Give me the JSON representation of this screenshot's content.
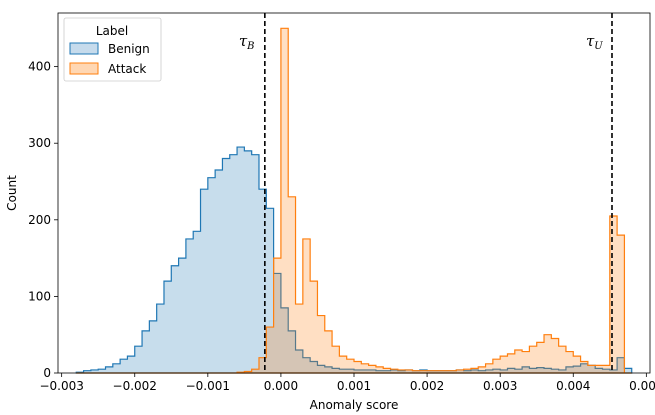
{
  "chart_data": {
    "type": "histogram",
    "xlabel": "Anomaly score",
    "ylabel": "Count",
    "xlim": [
      -0.00305,
      0.00505
    ],
    "ylim": [
      0,
      470
    ],
    "x_ticks": [
      -0.003,
      -0.002,
      -0.001,
      0.0,
      0.001,
      0.002,
      0.003,
      0.004,
      0.005
    ],
    "x_tick_labels": [
      "−0.003",
      "−0.002",
      "−0.001",
      "0.000",
      "0.001",
      "0.002",
      "0.003",
      "0.004",
      "0.005"
    ],
    "y_ticks": [
      0,
      100,
      200,
      300,
      400
    ],
    "y_tick_labels": [
      "0",
      "100",
      "200",
      "300",
      "400"
    ],
    "grid": false,
    "legend": {
      "title": "Label",
      "position": "top-left"
    },
    "bin_start": -0.0028,
    "bin_width": 0.0001,
    "series": [
      {
        "name": "Benign",
        "color": "#1f77b4",
        "fill": "#c6dbec",
        "counts": [
          1,
          3,
          4,
          5,
          8,
          12,
          18,
          22,
          35,
          55,
          68,
          90,
          120,
          140,
          150,
          175,
          185,
          240,
          255,
          265,
          280,
          285,
          295,
          290,
          285,
          240,
          215,
          130,
          85,
          55,
          30,
          20,
          15,
          10,
          8,
          6,
          5,
          5,
          4,
          4,
          4,
          3,
          3,
          4,
          3,
          4,
          3,
          4,
          3,
          3,
          3,
          3,
          4,
          3,
          4,
          3,
          4,
          5,
          4,
          6,
          5,
          8,
          6,
          7,
          6,
          5,
          4,
          8,
          9,
          12,
          10,
          6,
          5,
          4,
          20,
          6
        ]
      },
      {
        "name": "Attack",
        "color": "#ff7f0e",
        "fill": "#ffd7b3",
        "counts": [
          0,
          0,
          0,
          0,
          0,
          0,
          0,
          0,
          0,
          0,
          0,
          0,
          0,
          0,
          0,
          0,
          0,
          0,
          0,
          0,
          0,
          0,
          1,
          2,
          5,
          20,
          60,
          150,
          450,
          230,
          90,
          175,
          120,
          75,
          55,
          35,
          22,
          18,
          15,
          12,
          10,
          8,
          6,
          5,
          4,
          4,
          3,
          3,
          3,
          3,
          3,
          3,
          4,
          5,
          6,
          8,
          12,
          18,
          22,
          25,
          30,
          28,
          35,
          40,
          50,
          45,
          35,
          28,
          22,
          15,
          10,
          10,
          10,
          205,
          180,
          0
        ]
      }
    ],
    "thresholds": [
      {
        "name": "tau_B",
        "symbol": "τ",
        "subscript": "B",
        "x": -0.00022,
        "style": "dashed"
      },
      {
        "name": "tau_U",
        "symbol": "τ",
        "subscript": "U",
        "x": 0.00453,
        "style": "dashed"
      }
    ]
  }
}
